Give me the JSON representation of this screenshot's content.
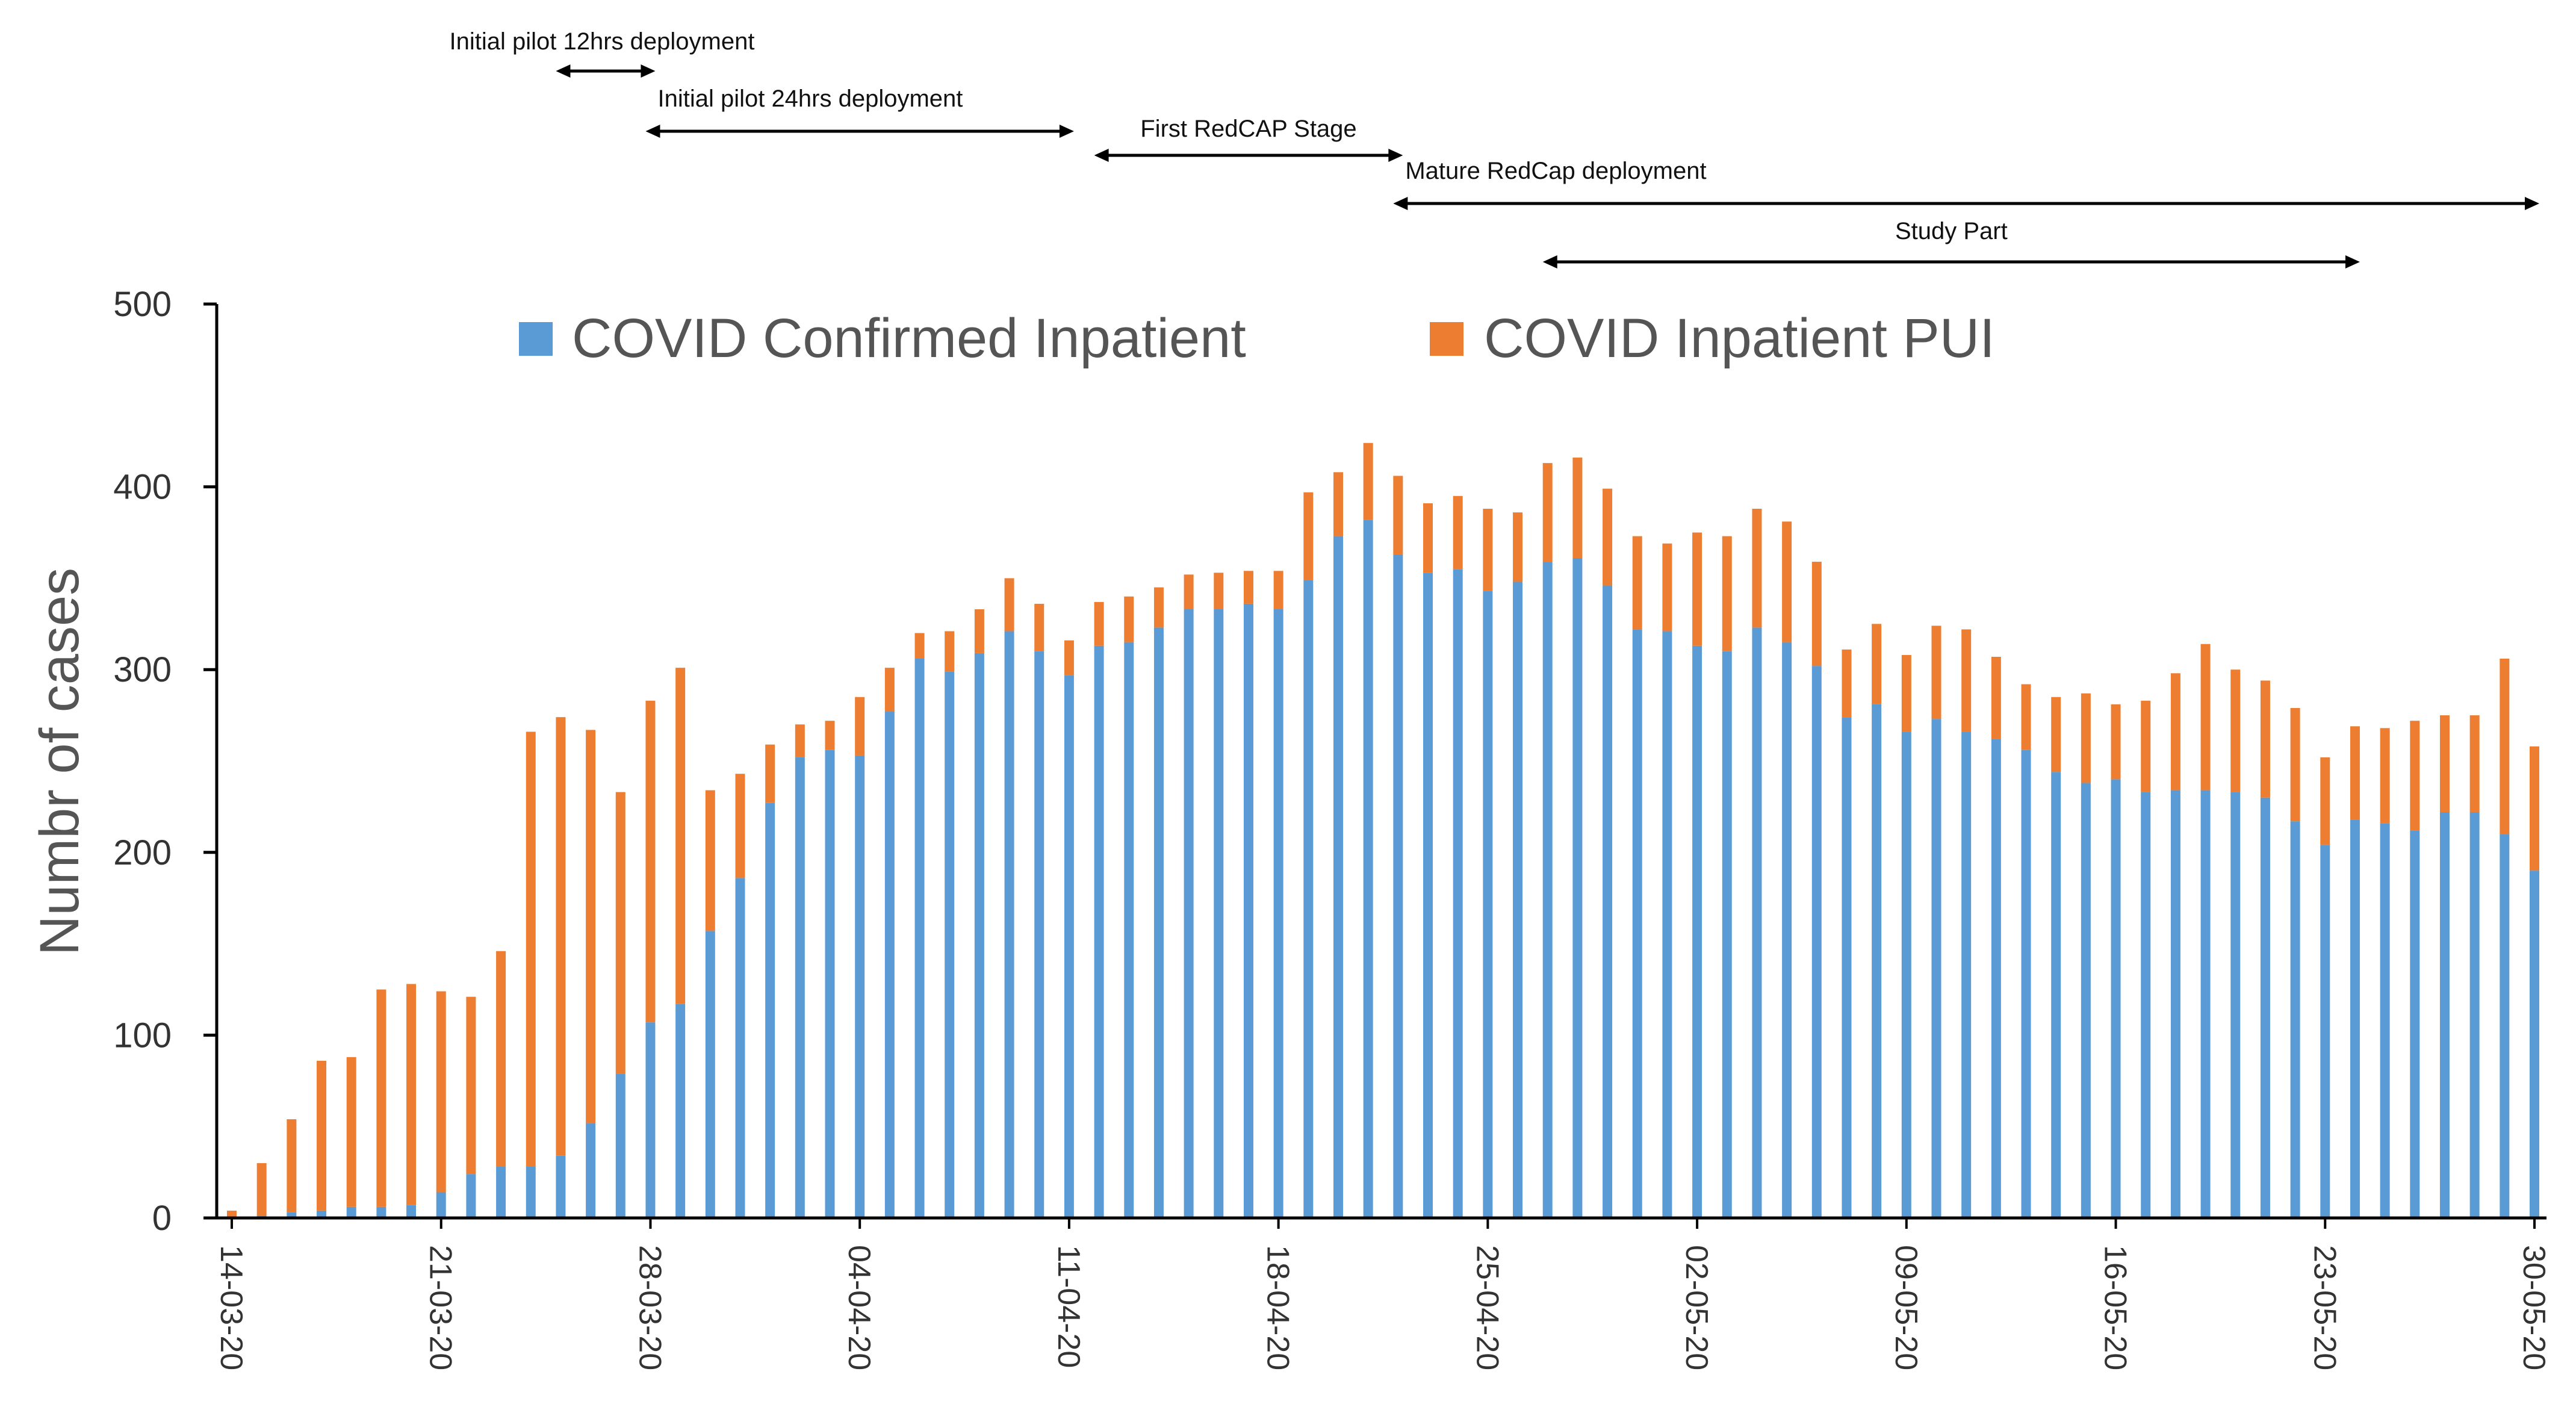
{
  "chart_data": {
    "type": "bar",
    "stacked": true,
    "title": "",
    "xlabel": "",
    "ylabel": "Numbr of cases",
    "ylim": [
      0,
      500
    ],
    "yticks": [
      0,
      100,
      200,
      300,
      400,
      500
    ],
    "x_tick_labels": [
      "14-03-20",
      "21-03-20",
      "28-03-20",
      "04-04-20",
      "11-04-20",
      "18-04-20",
      "25-04-20",
      "02-05-20",
      "09-05-20",
      "16-05-20",
      "23-05-20",
      "30-05-20"
    ],
    "x_tick_indices": [
      0,
      7,
      14,
      21,
      28,
      35,
      42,
      49,
      56,
      63,
      70,
      77
    ],
    "grid": false,
    "legend_position": "top-center",
    "series": [
      {
        "name": "COVID Confirmed Inpatient",
        "color": "#5B9BD5",
        "values": [
          0,
          1,
          3,
          4,
          6,
          6,
          7,
          14,
          24,
          28,
          28,
          34,
          52,
          79,
          107,
          117,
          157,
          186,
          227,
          252,
          256,
          253,
          277,
          306,
          299,
          309,
          321,
          310,
          297,
          313,
          315,
          323,
          333,
          333,
          336,
          333,
          349,
          373,
          382,
          363,
          353,
          355,
          343,
          348,
          359,
          361,
          346,
          322,
          321,
          313,
          310,
          323,
          315,
          302,
          274,
          281,
          266,
          273,
          266,
          262,
          256,
          244,
          238,
          240,
          233,
          234,
          234,
          233,
          230,
          217,
          204,
          218,
          216,
          212,
          222,
          222,
          210,
          190
        ]
      },
      {
        "name": "COVID Inpatient PUI",
        "color": "#ED7D31",
        "values": [
          4,
          29,
          51,
          82,
          82,
          119,
          121,
          110,
          97,
          118,
          238,
          240,
          215,
          154,
          176,
          184,
          77,
          57,
          32,
          18,
          16,
          32,
          24,
          14,
          22,
          24,
          29,
          26,
          19,
          24,
          25,
          22,
          19,
          20,
          18,
          21,
          48,
          35,
          42,
          43,
          38,
          40,
          45,
          38,
          54,
          55,
          53,
          51,
          48,
          62,
          63,
          65,
          66,
          57,
          37,
          44,
          42,
          51,
          56,
          45,
          36,
          41,
          49,
          41,
          50,
          64,
          80,
          67,
          64,
          62,
          48,
          51,
          52,
          60,
          53,
          53,
          96,
          68
        ]
      }
    ],
    "annotations": [
      {
        "label": "Initial pilot 12hrs deployment",
        "start_index": 11,
        "end_index": 14
      },
      {
        "label": "Initial pilot 24hrs deployment",
        "start_index": 14,
        "end_index": 28
      },
      {
        "label": "First RedCAP Stage",
        "start_index": 29,
        "end_index": 39
      },
      {
        "label": "Mature RedCap deployment",
        "start_index": 39,
        "end_index": 77
      },
      {
        "label": "Study Part",
        "start_index": 44,
        "end_index": 71
      }
    ]
  }
}
